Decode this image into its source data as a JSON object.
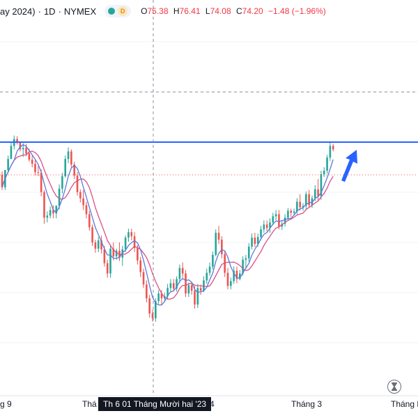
{
  "header": {
    "symbol_title": "ay 2024)",
    "interval": "1D",
    "exchange": "NYMEX",
    "market_status_icon": "green-dot-icon",
    "delayed_badge": "D",
    "ohlc": {
      "o_label": "O",
      "o_value": "75.38",
      "h_label": "H",
      "h_value": "76.41",
      "l_label": "L",
      "l_value": "74.08",
      "c_label": "C",
      "c_value": "74.20",
      "change": "−1.48 (−1.96%)"
    }
  },
  "colors": {
    "up": "#26a69a",
    "down": "#ef5350",
    "ma_fast": "#5b7bd6",
    "ma_slow": "#d94f87",
    "resistance_line": "#2962ff",
    "arrow": "#2962ff",
    "last_price_line": "#ef5350"
  },
  "xaxis": {
    "labels": [
      "g 9",
      "Thá",
      "4",
      "Tháng 3",
      "Tháng N"
    ],
    "crosshair_label": "Th 6 01 Tháng Mười hai '23"
  },
  "replay_icon": "hourglass-icon",
  "chart_data": {
    "type": "candlestick",
    "moving_averages": [
      "fast",
      "slow"
    ],
    "candles": [
      [
        0.0,
        0.5,
        -2.2,
        -1.8
      ],
      [
        -1.8,
        0.7,
        -2.2,
        0.7
      ],
      [
        0.7,
        2.8,
        0.5,
        2.3
      ],
      [
        2.3,
        4.7,
        2.3,
        4.2
      ],
      [
        4.2,
        5.7,
        3.7,
        5.2
      ],
      [
        5.2,
        5.6,
        4.4,
        4.8
      ],
      [
        4.8,
        4.8,
        3.4,
        3.7
      ],
      [
        3.7,
        4.6,
        2.6,
        3.9
      ],
      [
        3.9,
        4.5,
        2.7,
        3.1
      ],
      [
        3.1,
        3.8,
        1.9,
        2.2
      ],
      [
        2.2,
        2.8,
        1.1,
        1.6
      ],
      [
        1.6,
        2.2,
        -0.1,
        0.4
      ],
      [
        0.4,
        1.3,
        -0.2,
        0.3
      ],
      [
        0.3,
        0.8,
        -3.1,
        -2.5
      ],
      [
        -2.5,
        -2.2,
        -7.1,
        -6.2
      ],
      [
        -6.2,
        -5.3,
        -6.9,
        -5.9
      ],
      [
        -5.9,
        -4.6,
        -6.3,
        -5.1
      ],
      [
        -5.1,
        -4.4,
        -6.3,
        -5.6
      ],
      [
        -5.6,
        -4.4,
        -6.3,
        -4.5
      ],
      [
        -4.5,
        -1.4,
        -5.0,
        -2.0
      ],
      [
        -2.0,
        0.3,
        -2.7,
        -0.2
      ],
      [
        -0.2,
        2.8,
        -0.4,
        2.3
      ],
      [
        2.3,
        4.0,
        1.7,
        3.4
      ],
      [
        3.4,
        3.7,
        1.1,
        1.5
      ],
      [
        1.5,
        1.9,
        -0.6,
        -0.1
      ],
      [
        -0.1,
        0.4,
        -3.0,
        -2.5
      ],
      [
        -2.5,
        -2.1,
        -4.0,
        -3.4
      ],
      [
        -3.4,
        -2.2,
        -5.1,
        -4.4
      ],
      [
        -4.4,
        -3.9,
        -6.3,
        -5.7
      ],
      [
        -5.7,
        -5.2,
        -8.1,
        -7.6
      ],
      [
        -7.6,
        -7.2,
        -10.3,
        -9.8
      ],
      [
        -9.8,
        -9.4,
        -11.3,
        -10.7
      ],
      [
        -10.7,
        -9.0,
        -11.2,
        -9.5
      ],
      [
        -9.5,
        -8.8,
        -11.4,
        -10.8
      ],
      [
        -10.8,
        -10.3,
        -13.3,
        -12.8
      ],
      [
        -12.8,
        -12.3,
        -14.9,
        -14.3
      ],
      [
        -14.3,
        -10.3,
        -14.9,
        -10.7
      ],
      [
        -10.7,
        -9.8,
        -12.4,
        -11.8
      ],
      [
        -11.8,
        -10.7,
        -12.3,
        -11.0
      ],
      [
        -11.0,
        -9.8,
        -12.5,
        -12.0
      ],
      [
        -12.0,
        -10.3,
        -13.2,
        -10.8
      ],
      [
        -10.8,
        -8.8,
        -11.2,
        -9.1
      ],
      [
        -9.1,
        -7.8,
        -9.7,
        -8.3
      ],
      [
        -8.3,
        -7.8,
        -9.5,
        -8.9
      ],
      [
        -8.9,
        -8.3,
        -11.2,
        -10.6
      ],
      [
        -10.6,
        -10.2,
        -13.0,
        -12.4
      ],
      [
        -12.4,
        -11.9,
        -14.8,
        -14.1
      ],
      [
        -14.1,
        -13.6,
        -16.4,
        -15.9
      ],
      [
        -15.9,
        -15.3,
        -18.5,
        -17.9
      ],
      [
        -17.9,
        -17.4,
        -20.7,
        -20.1
      ],
      [
        -20.1,
        -19.5,
        -21.3,
        -20.8
      ],
      [
        -20.8,
        -17.9,
        -21.3,
        -18.3
      ],
      [
        -18.3,
        -16.7,
        -18.7,
        -17.2
      ],
      [
        -17.2,
        -16.7,
        -18.8,
        -17.9
      ],
      [
        -17.9,
        -17.1,
        -18.4,
        -17.6
      ],
      [
        -17.6,
        -15.8,
        -18.1,
        -16.4
      ],
      [
        -16.4,
        -15.1,
        -17.0,
        -15.7
      ],
      [
        -15.7,
        -15.1,
        -16.9,
        -16.5
      ],
      [
        -16.5,
        -14.7,
        -16.9,
        -15.1
      ],
      [
        -15.1,
        -13.0,
        -15.7,
        -13.5
      ],
      [
        -13.5,
        -12.7,
        -14.9,
        -14.3
      ],
      [
        -14.3,
        -13.8,
        -17.7,
        -17.2
      ],
      [
        -17.2,
        -15.6,
        -17.7,
        -16.0
      ],
      [
        -16.0,
        -15.6,
        -17.4,
        -16.8
      ],
      [
        -16.8,
        -16.1,
        -19.4,
        -18.8
      ],
      [
        -18.8,
        -15.8,
        -19.3,
        -16.4
      ],
      [
        -16.4,
        -15.9,
        -17.4,
        -16.8
      ],
      [
        -16.8,
        -14.7,
        -17.0,
        -15.3
      ],
      [
        -15.3,
        -13.6,
        -15.8,
        -14.2
      ],
      [
        -14.2,
        -12.7,
        -14.6,
        -13.3
      ],
      [
        -13.3,
        -11.1,
        -13.7,
        -11.6
      ],
      [
        -11.6,
        -7.9,
        -11.8,
        -8.4
      ],
      [
        -8.4,
        -7.4,
        -10.0,
        -9.4
      ],
      [
        -9.4,
        -8.9,
        -12.1,
        -11.5
      ],
      [
        -11.5,
        -11.0,
        -14.8,
        -14.2
      ],
      [
        -14.2,
        -13.5,
        -16.6,
        -16.1
      ],
      [
        -16.1,
        -14.9,
        -16.6,
        -15.4
      ],
      [
        -15.4,
        -13.3,
        -15.8,
        -13.9
      ],
      [
        -13.9,
        -13.3,
        -15.7,
        -15.1
      ],
      [
        -15.1,
        -13.8,
        -15.3,
        -14.3
      ],
      [
        -14.3,
        -11.8,
        -14.6,
        -12.3
      ],
      [
        -12.3,
        -11.6,
        -13.6,
        -12.1
      ],
      [
        -12.1,
        -9.9,
        -12.6,
        -10.4
      ],
      [
        -10.4,
        -8.5,
        -10.8,
        -9.1
      ],
      [
        -9.1,
        -8.4,
        -10.5,
        -10.0
      ],
      [
        -10.0,
        -8.5,
        -10.4,
        -9.0
      ],
      [
        -9.0,
        -7.4,
        -9.5,
        -7.9
      ],
      [
        -7.9,
        -6.6,
        -8.4,
        -7.2
      ],
      [
        -7.2,
        -6.6,
        -8.2,
        -7.7
      ],
      [
        -7.7,
        -6.3,
        -8.4,
        -6.9
      ],
      [
        -6.9,
        -5.5,
        -7.3,
        -6.0
      ],
      [
        -6.0,
        -5.1,
        -6.6,
        -5.7
      ],
      [
        -5.7,
        -5.1,
        -7.9,
        -7.5
      ],
      [
        -7.5,
        -6.6,
        -8.0,
        -7.1
      ],
      [
        -7.1,
        -5.7,
        -7.5,
        -6.2
      ],
      [
        -6.2,
        -4.8,
        -6.7,
        -5.2
      ],
      [
        -5.2,
        -4.9,
        -6.1,
        -5.5
      ],
      [
        -5.5,
        -4.9,
        -5.9,
        -5.3
      ],
      [
        -5.3,
        -3.4,
        -5.7,
        -3.9
      ],
      [
        -3.9,
        -2.8,
        -5.2,
        -4.7
      ],
      [
        -4.7,
        -4.1,
        -5.2,
        -4.5
      ],
      [
        -4.5,
        -2.4,
        -5.1,
        -2.8
      ],
      [
        -2.8,
        -2.2,
        -4.8,
        -4.4
      ],
      [
        -4.4,
        -3.0,
        -4.8,
        -3.4
      ],
      [
        -3.4,
        -1.5,
        -3.8,
        -2.1
      ],
      [
        -2.1,
        -0.6,
        -3.7,
        -3.1
      ],
      [
        -3.1,
        0.6,
        -3.6,
        0.1
      ],
      [
        0.1,
        1.1,
        -0.3,
        0.6
      ],
      [
        0.6,
        2.9,
        0.2,
        2.5
      ],
      [
        2.5,
        4.7,
        2.0,
        4.2
      ],
      [
        4.2,
        4.5,
        3.4,
        3.7
      ]
    ]
  }
}
